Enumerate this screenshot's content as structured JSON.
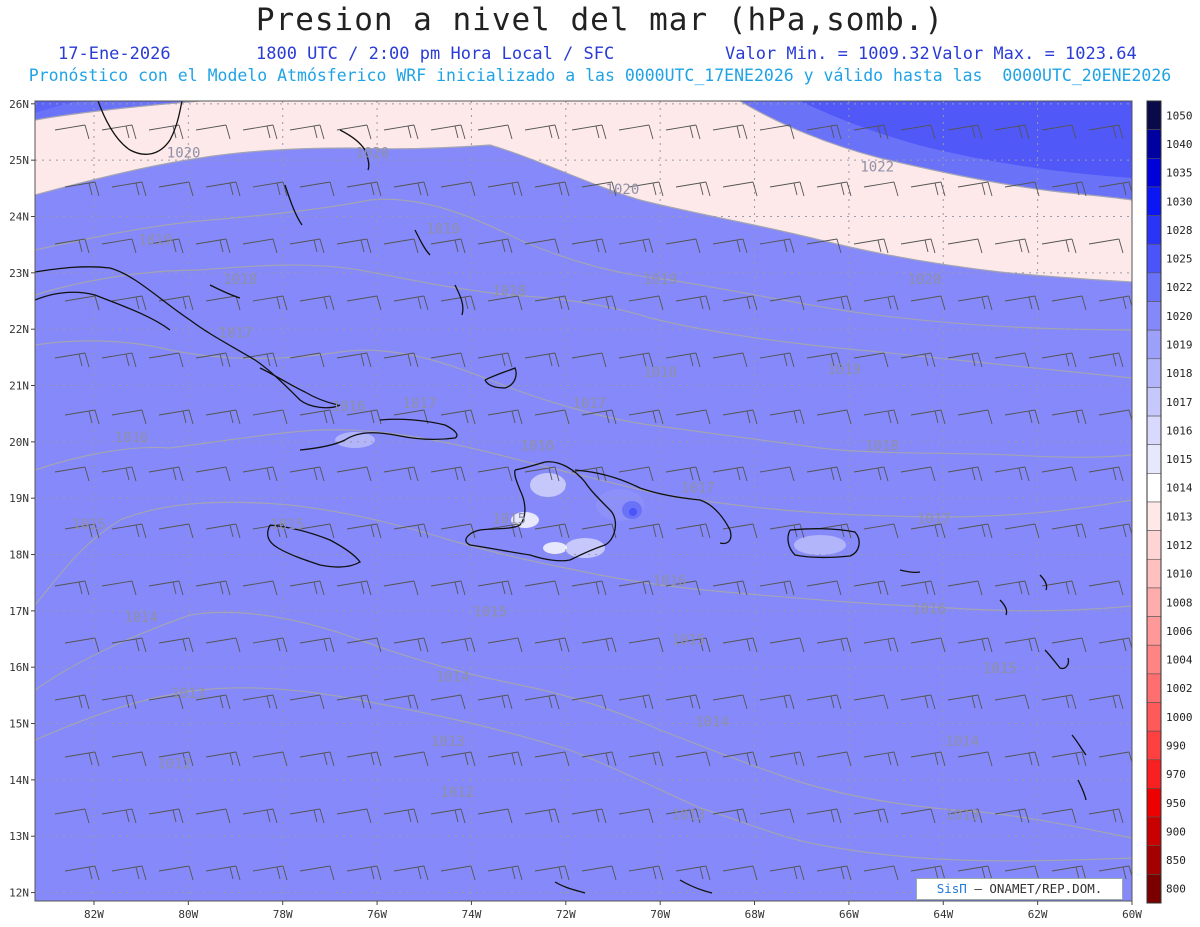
{
  "header": {
    "title": "Presion a nivel del mar (hPa,somb.)",
    "date": "17-Ene-2026",
    "time": "1800 UTC / 2:00 pm Hora Local / SFC",
    "min": "Valor Min. = 1009.32",
    "max": "Valor Max. = 1023.64",
    "model_line": "Pronóstico con el Modelo Atmósferico WRF inicializado a las 0000UTC_17ENE2026 y válido hasta las  0000UTC_20ENE2026"
  },
  "axes": {
    "lat_labels": [
      "26N",
      "25N",
      "24N",
      "23N",
      "22N",
      "21N",
      "20N",
      "19N",
      "18N",
      "17N",
      "16N",
      "15N",
      "14N",
      "13N",
      "12N"
    ],
    "lon_labels": [
      "82W",
      "80W",
      "78W",
      "76W",
      "74W",
      "72W",
      "70W",
      "68W",
      "66W",
      "64W",
      "62W",
      "60W"
    ]
  },
  "colorbar": {
    "levels": [
      "1050",
      "1040",
      "1035",
      "1030",
      "1028",
      "1025",
      "1022",
      "1020",
      "1019",
      "1018",
      "1017",
      "1016",
      "1015",
      "1014",
      "1013",
      "1012",
      "1010",
      "1008",
      "1006",
      "1004",
      "1002",
      "1000",
      "990",
      "970",
      "950",
      "900",
      "850",
      "800"
    ],
    "colors": [
      "#0a0a4a",
      "#0000a0",
      "#0000d8",
      "#0a16f4",
      "#2a34f6",
      "#4a54f8",
      "#6a72f8",
      "#8488f9",
      "#9ca0f9",
      "#b2b5fa",
      "#c6c8fb",
      "#d8d9fc",
      "#e8e8fd",
      "#ffffff",
      "#ffe8e8",
      "#ffd4d4",
      "#ffc0c0",
      "#ffacac",
      "#ff9898",
      "#ff8484",
      "#ff6f6f",
      "#ff5a5a",
      "#ff4040",
      "#f82020",
      "#ec0000",
      "#c80000",
      "#a40000",
      "#7a0000"
    ]
  },
  "contour_labels": [
    {
      "text": "1020",
      "lon": -80.1,
      "lat": 25.05
    },
    {
      "text": "1020",
      "lon": -76.1,
      "lat": 25.05
    },
    {
      "text": "1022",
      "lon": -65.4,
      "lat": 24.8
    },
    {
      "text": "1020",
      "lon": -70.8,
      "lat": 24.4
    },
    {
      "text": "1019",
      "lon": -80.7,
      "lat": 23.5
    },
    {
      "text": "1019",
      "lon": -74.6,
      "lat": 23.7
    },
    {
      "text": "1018",
      "lon": -78.9,
      "lat": 22.8
    },
    {
      "text": "1018",
      "lon": -73.2,
      "lat": 22.6
    },
    {
      "text": "1019",
      "lon": -70.0,
      "lat": 22.8
    },
    {
      "text": "1020",
      "lon": -64.4,
      "lat": 22.8
    },
    {
      "text": "1017",
      "lon": -79.0,
      "lat": 21.85
    },
    {
      "text": "1018",
      "lon": -70.0,
      "lat": 21.15
    },
    {
      "text": "1019",
      "lon": -66.1,
      "lat": 21.2
    },
    {
      "text": "1016",
      "lon": -76.6,
      "lat": 20.55
    },
    {
      "text": "1017",
      "lon": -75.1,
      "lat": 20.6
    },
    {
      "text": "1017",
      "lon": -71.5,
      "lat": 20.6
    },
    {
      "text": "1016",
      "lon": -81.2,
      "lat": 20.0
    },
    {
      "text": "1016",
      "lon": -72.6,
      "lat": 19.85
    },
    {
      "text": "1018",
      "lon": -65.3,
      "lat": 19.85
    },
    {
      "text": "1017",
      "lon": -69.2,
      "lat": 19.1
    },
    {
      "text": "1015",
      "lon": -82.1,
      "lat": 18.45
    },
    {
      "text": "1015",
      "lon": -77.9,
      "lat": 18.45
    },
    {
      "text": "1015",
      "lon": -73.2,
      "lat": 18.55
    },
    {
      "text": "1017",
      "lon": -64.2,
      "lat": 18.55
    },
    {
      "text": "1016",
      "lon": -69.8,
      "lat": 17.45
    },
    {
      "text": "1015",
      "lon": -73.6,
      "lat": 16.9
    },
    {
      "text": "1016",
      "lon": -64.3,
      "lat": 16.95
    },
    {
      "text": "1014",
      "lon": -81.0,
      "lat": 16.8
    },
    {
      "text": "1015",
      "lon": -69.4,
      "lat": 16.4
    },
    {
      "text": "1015",
      "lon": -62.8,
      "lat": 15.9
    },
    {
      "text": "1014",
      "lon": -74.4,
      "lat": 15.75
    },
    {
      "text": "1013",
      "lon": -80.0,
      "lat": 15.45
    },
    {
      "text": "1014",
      "lon": -68.9,
      "lat": 14.95
    },
    {
      "text": "1014",
      "lon": -63.6,
      "lat": 14.6
    },
    {
      "text": "1013",
      "lon": -74.5,
      "lat": 14.6
    },
    {
      "text": "1012",
      "lon": -80.3,
      "lat": 14.2
    },
    {
      "text": "1012",
      "lon": -74.3,
      "lat": 13.7
    },
    {
      "text": "1013",
      "lon": -69.4,
      "lat": 13.3
    },
    {
      "text": "1013",
      "lon": -63.6,
      "lat": 13.3
    }
  ],
  "credit": {
    "brand": "SisΠ",
    "text": "– ONAMET/REP.DOM."
  }
}
